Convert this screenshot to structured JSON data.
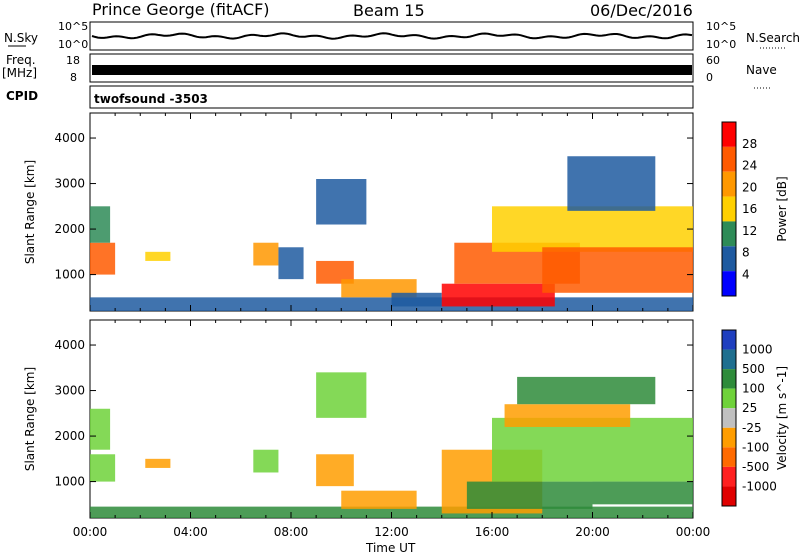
{
  "header": {
    "station": "Prince George (fitACF)",
    "beam": "Beam 15",
    "date": "06/Dec/2016"
  },
  "strip_labels": {
    "nsky": "N.Sky",
    "nsearch": "N.Search",
    "freq_top": "Freq.",
    "freq_unit": "[MHz]",
    "nave": "Nave",
    "cpid": "CPID",
    "cpid_value": "twofsound -3503"
  },
  "strip_ticks": {
    "nsky_hi": "10^5",
    "nsky_lo": "10^0",
    "nsearch_hi": "10^5",
    "nsearch_lo": "10^0",
    "freq_hi": "18",
    "freq_lo": "8",
    "nave_hi": "60",
    "nave_lo": "0"
  },
  "colorbars": {
    "power": {
      "label": "Power [dB]",
      "ticks": [
        "28",
        "24",
        "20",
        "16",
        "12",
        "8",
        "4"
      ],
      "colors": [
        "#ff0000",
        "#ff5a00",
        "#ff9800",
        "#ffd000",
        "#2e8b57",
        "#1e5aa0",
        "#0000ff"
      ]
    },
    "velocity": {
      "label": "Velocity [m s^-1]",
      "ticks": [
        "1000",
        "500",
        "100",
        "25",
        "-25",
        "-100",
        "-500",
        "-1000"
      ],
      "colors": [
        "#1f3fbf",
        "#1f6f8f",
        "#2e8b3a",
        "#6fd23a",
        "#c0c0c0",
        "#ff9d00",
        "#ff6a00",
        "#ff2020",
        "#e00000"
      ]
    }
  },
  "chart_data": [
    {
      "type": "heatmap",
      "title": "",
      "parameter": "Power",
      "xlabel": "",
      "ylabel": "Slant Range [km]",
      "xlim": [
        "00:00",
        "24:00"
      ],
      "ylim": [
        200,
        4550
      ],
      "yticks": [
        "1000",
        "2000",
        "3000",
        "4000"
      ],
      "grid": false,
      "cmap": "power",
      "clim_db": [
        0,
        30
      ],
      "cells": [
        {
          "t0": 0.0,
          "t1": 1.0,
          "r0": 1000,
          "r1": 1700,
          "v": 22
        },
        {
          "t0": 0.0,
          "t1": 0.8,
          "r0": 1700,
          "r1": 2500,
          "v": 10
        },
        {
          "t0": 0.0,
          "t1": 24.0,
          "r0": 200,
          "r1": 500,
          "v": 6
        },
        {
          "t0": 2.2,
          "t1": 3.2,
          "r0": 1300,
          "r1": 1500,
          "v": 14
        },
        {
          "t0": 6.5,
          "t1": 7.5,
          "r0": 1200,
          "r1": 1700,
          "v": 18
        },
        {
          "t0": 7.5,
          "t1": 8.5,
          "r0": 900,
          "r1": 1600,
          "v": 6
        },
        {
          "t0": 9.0,
          "t1": 10.5,
          "r0": 800,
          "r1": 1300,
          "v": 22
        },
        {
          "t0": 9.0,
          "t1": 11.0,
          "r0": 2100,
          "r1": 3100,
          "v": 7
        },
        {
          "t0": 10.0,
          "t1": 13.0,
          "r0": 500,
          "r1": 900,
          "v": 20
        },
        {
          "t0": 12.0,
          "t1": 14.0,
          "r0": 300,
          "r1": 600,
          "v": 8
        },
        {
          "t0": 14.0,
          "t1": 18.5,
          "r0": 300,
          "r1": 800,
          "v": 29
        },
        {
          "t0": 14.5,
          "t1": 19.5,
          "r0": 800,
          "r1": 1700,
          "v": 24
        },
        {
          "t0": 16.0,
          "t1": 24.0,
          "r0": 1500,
          "r1": 2500,
          "v": 14
        },
        {
          "t0": 18.0,
          "t1": 24.0,
          "r0": 600,
          "r1": 1600,
          "v": 25
        },
        {
          "t0": 19.0,
          "t1": 22.5,
          "r0": 2400,
          "r1": 3600,
          "v": 7
        }
      ]
    },
    {
      "type": "heatmap",
      "title": "",
      "parameter": "Velocity",
      "xlabel": "Time UT",
      "ylabel": "Slant Range [km]",
      "xlim": [
        "00:00",
        "24:00"
      ],
      "ylim": [
        200,
        4550
      ],
      "xticks": [
        "00:00",
        "04:00",
        "08:00",
        "12:00",
        "16:00",
        "20:00",
        "00:00"
      ],
      "yticks": [
        "1000",
        "2000",
        "3000",
        "4000"
      ],
      "grid": false,
      "cmap": "velocity",
      "clim_ms": [
        -1000,
        1000
      ],
      "cells": [
        {
          "t0": 0.0,
          "t1": 1.0,
          "r0": 1000,
          "r1": 1600,
          "v": 20
        },
        {
          "t0": 0.0,
          "t1": 0.8,
          "r0": 1700,
          "r1": 2600,
          "v": 0
        },
        {
          "t0": 0.0,
          "t1": 24.0,
          "r0": 200,
          "r1": 450,
          "v": 60
        },
        {
          "t0": 2.2,
          "t1": 3.2,
          "r0": 1300,
          "r1": 1500,
          "v": -150
        },
        {
          "t0": 6.5,
          "t1": 7.5,
          "r0": 1200,
          "r1": 1700,
          "v": 40
        },
        {
          "t0": 9.0,
          "t1": 10.5,
          "r0": 900,
          "r1": 1600,
          "v": -200
        },
        {
          "t0": 9.0,
          "t1": 11.0,
          "r0": 2400,
          "r1": 3400,
          "v": 0
        },
        {
          "t0": 10.0,
          "t1": 13.0,
          "r0": 400,
          "r1": 800,
          "v": -150
        },
        {
          "t0": 14.0,
          "t1": 18.0,
          "r0": 300,
          "r1": 1700,
          "v": -120
        },
        {
          "t0": 15.0,
          "t1": 20.0,
          "r0": 400,
          "r1": 1000,
          "v": 80
        },
        {
          "t0": 16.0,
          "t1": 24.0,
          "r0": 1000,
          "r1": 2400,
          "v": 0
        },
        {
          "t0": 20.0,
          "t1": 24.0,
          "r0": 500,
          "r1": 1000,
          "v": 70
        },
        {
          "t0": 16.5,
          "t1": 21.5,
          "r0": 2200,
          "r1": 2700,
          "v": -200
        },
        {
          "t0": 17.0,
          "t1": 22.5,
          "r0": 2700,
          "r1": 3300,
          "v": 80
        }
      ]
    }
  ]
}
